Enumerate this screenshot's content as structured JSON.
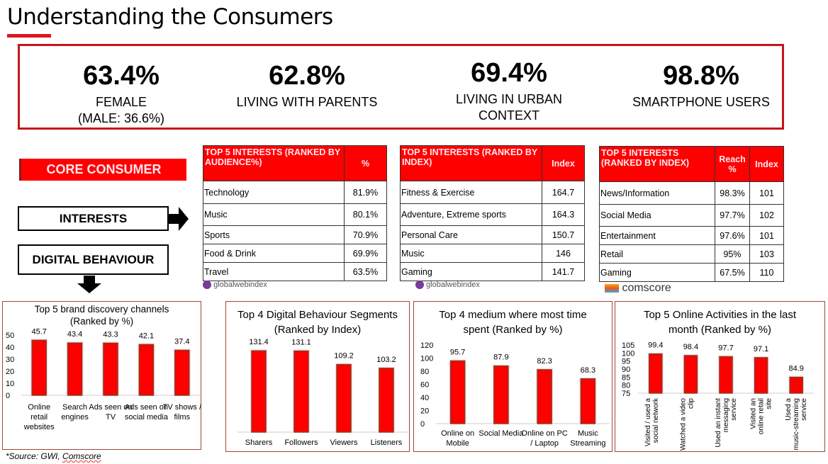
{
  "title": "Understanding the Consumers",
  "stats": [
    {
      "value": "63.4%",
      "label": "FEMALE",
      "sub": "(MALE: 36.6%)"
    },
    {
      "value": "62.8%",
      "label": "LIVING WITH PARENTS",
      "sub": ""
    },
    {
      "value": "69.4%",
      "label": "LIVING IN URBAN",
      "sub": "CONTEXT"
    },
    {
      "value": "98.8%",
      "label": "SMARTPHONE USERS",
      "sub": ""
    }
  ],
  "core_label": "CORE CONSUMER",
  "interests_label": "INTERESTS",
  "digital_label": "DIGITAL BEHAVIOUR",
  "colors": {
    "accent": "#ff0000",
    "border": "#c4161c",
    "bar_edge": "#8b3a1a"
  },
  "tables": [
    {
      "header": "TOP 5 INTERESTS (RANKED BY AUDIENCE%)",
      "cols": [
        "%"
      ],
      "rows": [
        [
          "Technology",
          "81.9%"
        ],
        [
          "Music",
          "80.1%"
        ],
        [
          "Sports",
          "70.9%"
        ],
        [
          "Food & Drink",
          "69.9%"
        ],
        [
          "Travel",
          "63.5%"
        ]
      ],
      "logo": "globalwebindex"
    },
    {
      "header": "TOP 5 INTERESTS (RANKED BY INDEX)",
      "cols": [
        "Index"
      ],
      "rows": [
        [
          "Fitness & Exercise",
          "164.7"
        ],
        [
          "Adventure, Extreme sports",
          "164.3"
        ],
        [
          "Personal Care",
          "150.7"
        ],
        [
          "Music",
          "146"
        ],
        [
          "Gaming",
          "141.7"
        ]
      ],
      "logo": "globalwebindex"
    },
    {
      "header": "TOP 5 INTERESTS (RANKED BY INDEX)",
      "cols": [
        "Reach %",
        "Index"
      ],
      "rows": [
        [
          "News/Information",
          "98.3%",
          "101"
        ],
        [
          "Social Media",
          "97.7%",
          "102"
        ],
        [
          "Entertainment",
          "97.6%",
          "101"
        ],
        [
          "Retail",
          "95%",
          "103"
        ],
        [
          "Gaming",
          "67.5%",
          "110"
        ]
      ],
      "logo": "comscore"
    }
  ],
  "chart_data": [
    {
      "type": "bar",
      "title": "Top 5 brand discovery channels (Ranked by %)",
      "categories": [
        "Online retail websites",
        "Search engines",
        "Ads seen on TV",
        "Ads seen on social media",
        "TV shows / films"
      ],
      "values": [
        45.7,
        43.4,
        43.3,
        42.1,
        37.4
      ],
      "ylim": [
        0,
        50
      ],
      "yticks": [
        0,
        10,
        20,
        30,
        40,
        50
      ]
    },
    {
      "type": "bar",
      "title": "Top 4 Digital Behaviour Segments (Ranked by  Index)",
      "categories": [
        "Sharers",
        "Followers",
        "Viewers",
        "Listeners"
      ],
      "values": [
        131.4,
        131.1,
        109.2,
        103.2
      ],
      "yticks": []
    },
    {
      "type": "bar",
      "title": "Top 4 medium where most time spent (Ranked by %)",
      "categories": [
        "Online on Mobile",
        "Social Media",
        "Online on PC / Laptop",
        "Music Streaming"
      ],
      "values": [
        95.7,
        87.9,
        82.3,
        68.3
      ],
      "ylim": [
        0,
        120
      ],
      "yticks": [
        0,
        20,
        40,
        60,
        80,
        100,
        120
      ]
    },
    {
      "type": "bar",
      "title": "Top 5 Online Activities in the last month (Ranked by %)",
      "categories": [
        "Visited / used a social network",
        "Watched a video clip",
        "Used an instant messaging service",
        "Visited an online retail site",
        "Used a music-streaming service"
      ],
      "values": [
        99.4,
        98.4,
        97.7,
        97.1,
        84.9
      ],
      "ylim": [
        75,
        105
      ],
      "yticks": [
        75,
        80,
        85,
        90,
        95,
        100,
        105
      ]
    }
  ],
  "source": {
    "prefix": "*Source: GWI, ",
    "link": "Comscore"
  }
}
